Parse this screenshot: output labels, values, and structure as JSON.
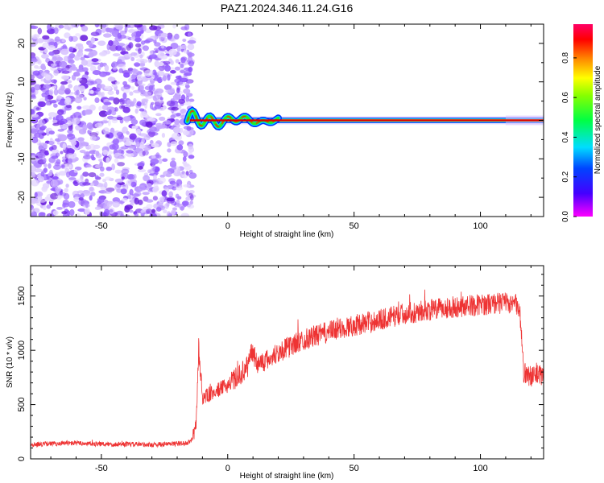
{
  "figure": {
    "title": "PAZ1.2024.346.11.24.G16"
  },
  "chart_data": [
    {
      "type": "heatmap",
      "xlabel": "Height of straight line (km)",
      "ylabel": "Frequency (Hz)",
      "xlim": [
        -78,
        125
      ],
      "ylim": [
        -25,
        25
      ],
      "xticks": [
        -50,
        0,
        50,
        100
      ],
      "yticks": [
        -20,
        -10,
        0,
        10,
        20
      ],
      "noise_region_x": [
        -78,
        -15
      ],
      "signal_start_x": -15,
      "signal_end_x": 125,
      "signal_frequency": 0,
      "colorbar": {
        "label": "Normalized spectral amplitude",
        "range": [
          0.0,
          0.97
        ],
        "ticks": [
          0.0,
          0.2,
          0.4,
          0.6,
          0.8
        ],
        "tick_labels": [
          "0.0",
          "0.2",
          "0.4",
          "0.6",
          "0.8"
        ],
        "colormap": "rainbow (magenta-blue-cyan-green-yellow-red-magenta)"
      },
      "grid": false
    },
    {
      "type": "line",
      "xlabel": "Height of straight line (km)",
      "ylabel": "SNR (10 * v/v)",
      "xlim": [
        -78,
        125
      ],
      "ylim": [
        0,
        1780
      ],
      "xticks": [
        -50,
        0,
        50,
        100
      ],
      "yticks": [
        0,
        500,
        1000,
        1500
      ],
      "color": "#ee3333",
      "grid": false,
      "series": [
        {
          "x": [
            -78,
            -70,
            -60,
            -50,
            -40,
            -30,
            -20,
            -16,
            -14,
            -12.5,
            -11.5,
            -10,
            -5,
            0,
            5,
            8,
            9,
            12,
            15,
            20,
            25,
            30,
            40,
            50,
            60,
            70,
            80,
            90,
            100,
            110,
            115,
            116,
            117,
            120,
            125
          ],
          "values": [
            130,
            140,
            145,
            135,
            135,
            130,
            140,
            145,
            180,
            300,
            1020,
            560,
            620,
            680,
            780,
            850,
            1000,
            880,
            900,
            980,
            1040,
            1100,
            1170,
            1230,
            1280,
            1340,
            1370,
            1400,
            1420,
            1440,
            1420,
            1260,
            800,
            760,
            780
          ]
        }
      ]
    }
  ]
}
